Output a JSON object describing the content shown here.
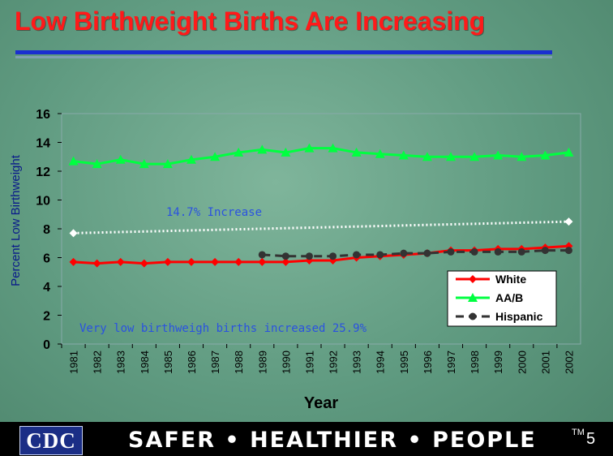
{
  "slide": {
    "title": "Low Birthweight Births Are Increasing",
    "footer_logo": "CDC",
    "footer_tagline": "SAFER • HEALTHIER • PEOPLE",
    "footer_trademark": "TM",
    "slide_number": "5"
  },
  "colors": {
    "white_series": "#ff0000",
    "aab_series": "#00ff40",
    "hispanic_series": "#333333",
    "total_trend": "#ffffff",
    "annotation_text": "#2a52e0"
  },
  "chart_data": {
    "type": "line",
    "title": "",
    "xlabel": "Year",
    "ylabel": "Percent Low Birthweight",
    "ylim": [
      0,
      16
    ],
    "yticks": [
      0,
      2,
      4,
      6,
      8,
      10,
      12,
      14,
      16
    ],
    "grid": false,
    "legend_position": "bottom-right",
    "categories": [
      "1981",
      "1982",
      "1983",
      "1984",
      "1985",
      "1986",
      "1987",
      "1988",
      "1989",
      "1990",
      "1991",
      "1992",
      "1993",
      "1994",
      "1995",
      "1996",
      "1997",
      "1998",
      "1999",
      "2000",
      "2001",
      "2002"
    ],
    "series": [
      {
        "name": "White",
        "color": "#ff0000",
        "marker": "diamond",
        "dash": "solid",
        "values": [
          5.7,
          5.6,
          5.7,
          5.6,
          5.7,
          5.7,
          5.7,
          5.7,
          5.7,
          5.7,
          5.8,
          5.8,
          6.0,
          6.1,
          6.2,
          6.3,
          6.5,
          6.5,
          6.6,
          6.6,
          6.7,
          6.8
        ]
      },
      {
        "name": "AA/B",
        "color": "#00ff40",
        "marker": "triangle",
        "dash": "solid",
        "values": [
          12.7,
          12.5,
          12.8,
          12.5,
          12.5,
          12.8,
          13.0,
          13.3,
          13.5,
          13.3,
          13.6,
          13.6,
          13.3,
          13.2,
          13.1,
          13.0,
          13.0,
          13.0,
          13.1,
          13.0,
          13.1,
          13.3
        ]
      },
      {
        "name": "Hispanic",
        "color": "#333333",
        "marker": "circle",
        "dash": "dashed",
        "values": [
          null,
          null,
          null,
          null,
          null,
          null,
          null,
          null,
          6.2,
          6.1,
          6.1,
          6.1,
          6.2,
          6.2,
          6.3,
          6.3,
          6.4,
          6.4,
          6.4,
          6.4,
          6.5,
          6.5
        ]
      },
      {
        "name": "",
        "color": "#ffffff",
        "marker": "diamond",
        "dash": "dotted",
        "values": [
          7.7,
          null,
          null,
          null,
          null,
          null,
          null,
          null,
          null,
          null,
          null,
          null,
          null,
          null,
          null,
          null,
          null,
          null,
          null,
          null,
          null,
          8.5
        ]
      }
    ],
    "annotations": [
      {
        "text": "14.7% Increase"
      },
      {
        "text": "Very low birthweigh births increased 25.9%"
      }
    ]
  }
}
